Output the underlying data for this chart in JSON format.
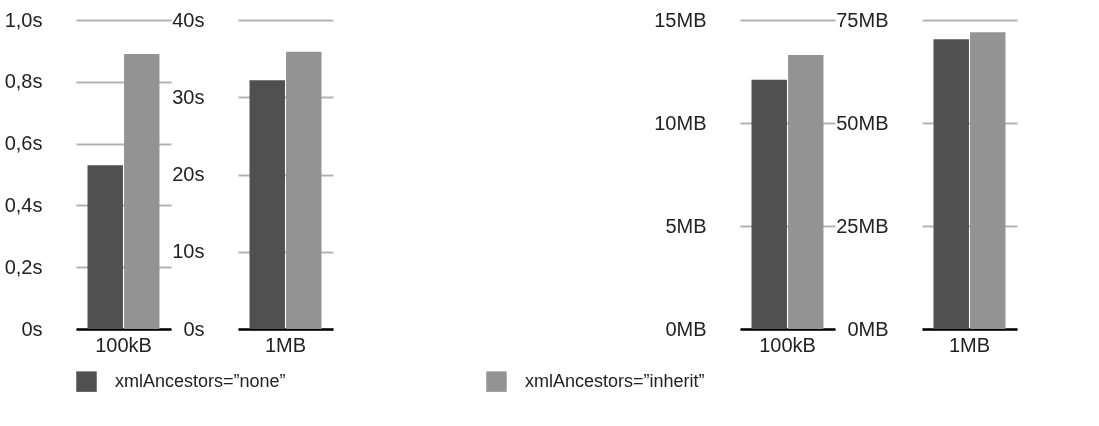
{
  "chart_data": [
    {
      "type": "bar",
      "categories": [
        "100kB"
      ],
      "series": [
        {
          "name": "xmlAncestors=”none”",
          "color": "#505050",
          "values": [
            0.53
          ]
        },
        {
          "name": "xmlAncestors=”inherit”",
          "color": "#939393",
          "values": [
            0.89
          ]
        }
      ],
      "ylim": [
        0,
        1.0
      ],
      "yticks": [
        {
          "value": 0,
          "label": "0s"
        },
        {
          "value": 0.2,
          "label": "0,2s"
        },
        {
          "value": 0.4,
          "label": "0,4s"
        },
        {
          "value": 0.6,
          "label": "0,6s"
        },
        {
          "value": 0.8,
          "label": "0,8s"
        },
        {
          "value": 1.0,
          "label": "1,0s"
        }
      ],
      "grid": "y",
      "legend": "bottom"
    },
    {
      "type": "bar",
      "categories": [
        "1MB"
      ],
      "series": [
        {
          "name": "xmlAncestors=”none”",
          "color": "#505050",
          "values": [
            32.2
          ]
        },
        {
          "name": "xmlAncestors=”inherit”",
          "color": "#939393",
          "values": [
            35.9
          ]
        }
      ],
      "ylim": [
        0,
        40
      ],
      "yticks": [
        {
          "value": 0,
          "label": "0s"
        },
        {
          "value": 10,
          "label": "10s"
        },
        {
          "value": 20,
          "label": "20s"
        },
        {
          "value": 30,
          "label": "30s"
        },
        {
          "value": 40,
          "label": "40s"
        }
      ],
      "grid": "y",
      "legend": "bottom"
    },
    {
      "type": "bar",
      "categories": [
        "100kB"
      ],
      "series": [
        {
          "name": "xmlAncestors=”none”",
          "color": "#505050",
          "values": [
            12.1
          ]
        },
        {
          "name": "xmlAncestors=”inherit”",
          "color": "#939393",
          "values": [
            13.3
          ]
        }
      ],
      "ylim": [
        0,
        15
      ],
      "yticks": [
        {
          "value": 0,
          "label": "0MB"
        },
        {
          "value": 5,
          "label": "5MB"
        },
        {
          "value": 10,
          "label": "10MB"
        },
        {
          "value": 15,
          "label": "15MB"
        }
      ],
      "grid": "y",
      "legend": "bottom"
    },
    {
      "type": "bar",
      "categories": [
        "1MB"
      ],
      "series": [
        {
          "name": "xmlAncestors=”none”",
          "color": "#505050",
          "values": [
            70.3
          ]
        },
        {
          "name": "xmlAncestors=”inherit”",
          "color": "#939393",
          "values": [
            72.0
          ]
        }
      ],
      "ylim": [
        0,
        75
      ],
      "yticks": [
        {
          "value": 0,
          "label": "0MB"
        },
        {
          "value": 25,
          "label": "25MB"
        },
        {
          "value": 50,
          "label": "50MB"
        },
        {
          "value": 75,
          "label": "75MB"
        }
      ],
      "grid": "y",
      "legend": "bottom"
    }
  ]
}
